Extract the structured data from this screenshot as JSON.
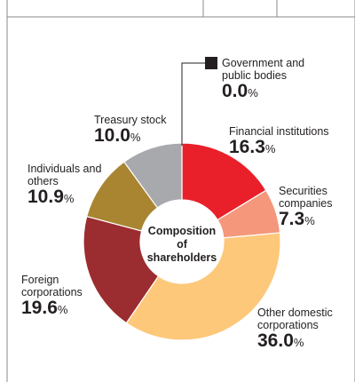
{
  "chart_data": {
    "type": "pie",
    "subtype": "donut",
    "title": "Composition of shareholders",
    "slices": [
      {
        "label": "Government and public bodies",
        "value": 0.0,
        "color": "#231f20"
      },
      {
        "label": "Financial institutions",
        "value": 16.3,
        "color": "#e9202a"
      },
      {
        "label": "Securities companies",
        "value": 7.3,
        "color": "#f4977a"
      },
      {
        "label": "Other domestic corporations",
        "value": 36.0,
        "color": "#fdc87a"
      },
      {
        "label": "Foreign corporations",
        "value": 19.6,
        "color": "#9b2c30"
      },
      {
        "label": "Individuals and others",
        "value": 10.9,
        "color": "#a98532"
      },
      {
        "label": "Treasury stock",
        "value": 10.0,
        "color": "#a7a9ac"
      }
    ]
  },
  "center": {
    "line1": "Composition",
    "line2": "of",
    "line3": "shareholders"
  },
  "labels": {
    "gov": {
      "l1": "Government and",
      "l2": "public bodies",
      "val": "0.0",
      "pct": "%"
    },
    "fin": {
      "l1": "Financial institutions",
      "val": "16.3",
      "pct": "%"
    },
    "sec": {
      "l1": "Securities",
      "l2": "companies",
      "val": "7.3",
      "pct": "%"
    },
    "dom": {
      "l1": "Other domestic",
      "l2": "corporations",
      "val": "36.0",
      "pct": "%"
    },
    "for": {
      "l1": "Foreign",
      "l2": "corporations",
      "val": "19.6",
      "pct": "%"
    },
    "ind": {
      "l1": "Individuals and",
      "l2": "others",
      "val": "10.9",
      "pct": "%"
    },
    "tre": {
      "l1": "Treasury stock",
      "val": "10.0",
      "pct": "%"
    }
  }
}
